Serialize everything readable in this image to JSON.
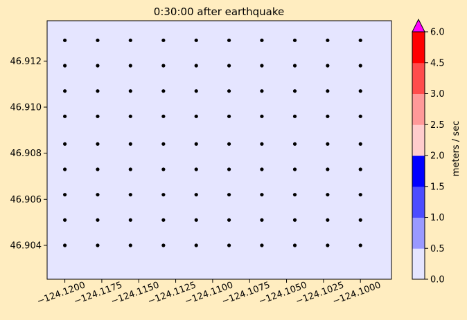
{
  "chart_data": [
    {
      "type": "scatter",
      "title": "0:30:00 after earthquake",
      "xlim": [
        -124.1212,
        -124.0979
      ],
      "ylim": [
        46.90253,
        46.91375
      ],
      "x_ticks": [
        "−124.1200",
        "−124.1175",
        "−124.1150",
        "−124.1125",
        "−124.1100",
        "−124.1075",
        "−124.1050",
        "−124.1025",
        "−124.1000"
      ],
      "x_tick_values": [
        -124.12,
        -124.1175,
        -124.115,
        -124.1125,
        -124.11,
        -124.1075,
        -124.105,
        -124.1025,
        -124.1
      ],
      "y_ticks": [
        "46.904",
        "46.906",
        "46.908",
        "46.910",
        "46.912"
      ],
      "y_tick_values": [
        46.904,
        46.906,
        46.908,
        46.91,
        46.912
      ],
      "grid": false,
      "plot_background": "#e5e5ff",
      "point_color": "#000000",
      "point_x": [
        -124.12,
        -124.11778,
        -124.11556,
        -124.11333,
        -124.11111,
        -124.10889,
        -124.10667,
        -124.10444,
        -124.10222,
        -124.1
      ],
      "point_y": [
        46.904,
        46.9051,
        46.9062,
        46.9073,
        46.9084,
        46.9096,
        46.9107,
        46.9118,
        46.9129
      ]
    },
    {
      "type": "colorbar",
      "label": "meters / sec",
      "levels": [
        0.0,
        0.5,
        1.0,
        1.5,
        2.0,
        2.5,
        3.0,
        4.5,
        6.0
      ],
      "tick_labels": [
        "0.0",
        "0.5",
        "1.0",
        "1.5",
        "2.0",
        "2.5",
        "3.0",
        "4.5",
        "6.0"
      ],
      "colors": [
        "#e5e5ff",
        "#9999ff",
        "#4c4cff",
        "#0000ff",
        "#ffcccc",
        "#ff9999",
        "#ff4c4c",
        "#ff0000"
      ],
      "extend_max_color": "#ff00ff"
    }
  ]
}
